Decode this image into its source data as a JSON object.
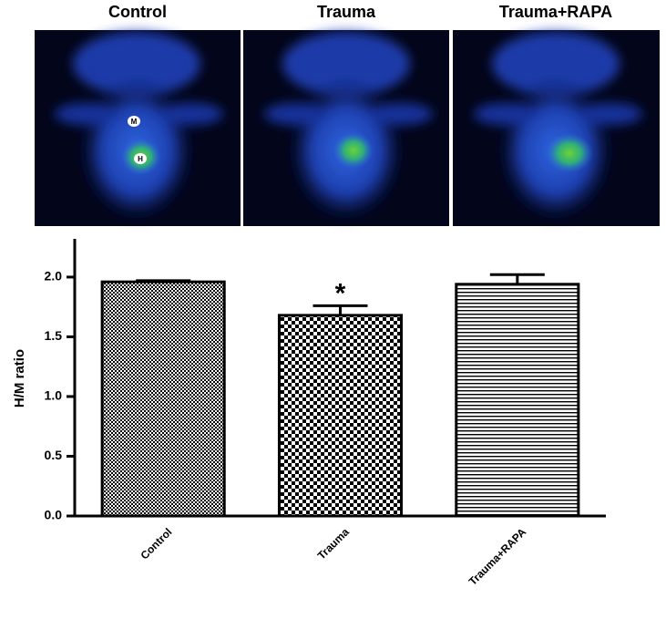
{
  "images": [
    {
      "title": "Control",
      "markers": [
        "M",
        "H"
      ]
    },
    {
      "title": "Trauma"
    },
    {
      "title": "Trauma+RAPA"
    }
  ],
  "chart_data": {
    "type": "bar",
    "y_label": "H/M ratio",
    "categories": [
      "Control",
      "Trauma",
      "Trauma+RAPA"
    ],
    "values": [
      1.96,
      1.68,
      1.94
    ],
    "errors": [
      0.01,
      0.08,
      0.08
    ],
    "patterns": [
      "checker-fine",
      "checker",
      "hstripes"
    ],
    "annotations": [
      {
        "text": "*",
        "category": "Trauma"
      }
    ],
    "ylim": [
      0,
      2.32
    ],
    "yticks": [
      {
        "value": 0,
        "label": "0.0"
      },
      {
        "value": 0.5,
        "label": "0.5"
      },
      {
        "value": 1,
        "label": "1.0"
      },
      {
        "value": 1.5,
        "label": "1.5"
      },
      {
        "value": 2,
        "label": "2.0"
      }
    ]
  }
}
